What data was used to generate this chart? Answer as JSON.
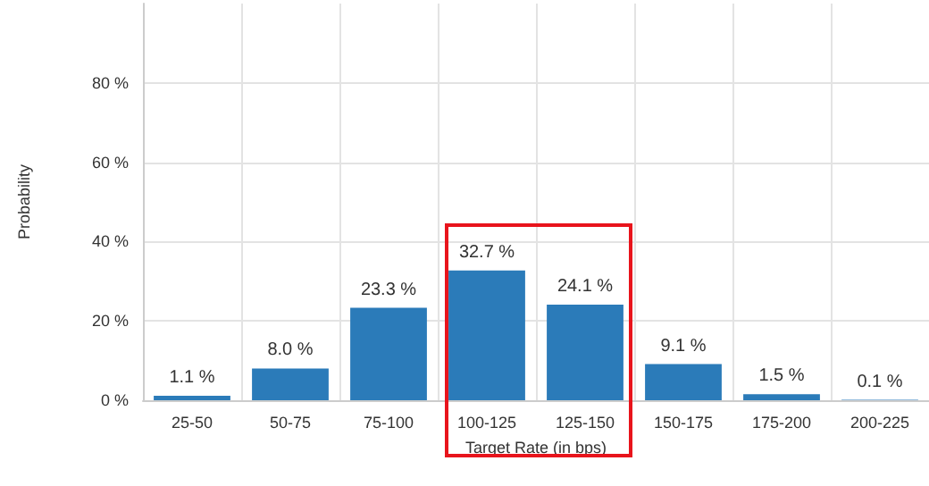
{
  "chart_data": {
    "type": "bar",
    "xlabel": "Target Rate (in bps)",
    "ylabel": "Probability",
    "categories": [
      "25-50",
      "50-75",
      "75-100",
      "100-125",
      "125-150",
      "150-175",
      "175-200",
      "200-225"
    ],
    "values": [
      1.1,
      8.0,
      23.3,
      32.7,
      24.1,
      9.1,
      1.5,
      0.1
    ],
    "value_labels": [
      "1.1 %",
      "8.0 %",
      "23.3 %",
      "32.7 %",
      "24.1 %",
      "9.1 %",
      "1.5 %",
      "0.1 %"
    ],
    "color": "#2b7bb9",
    "ylim": [
      0,
      100
    ],
    "yticks": [
      {
        "value": 0,
        "label": "0 %"
      },
      {
        "value": 20,
        "label": "20 %"
      },
      {
        "value": 40,
        "label": "40 %"
      },
      {
        "value": 60,
        "label": "60 %"
      },
      {
        "value": 80,
        "label": "80 %"
      }
    ],
    "grid": true
  }
}
